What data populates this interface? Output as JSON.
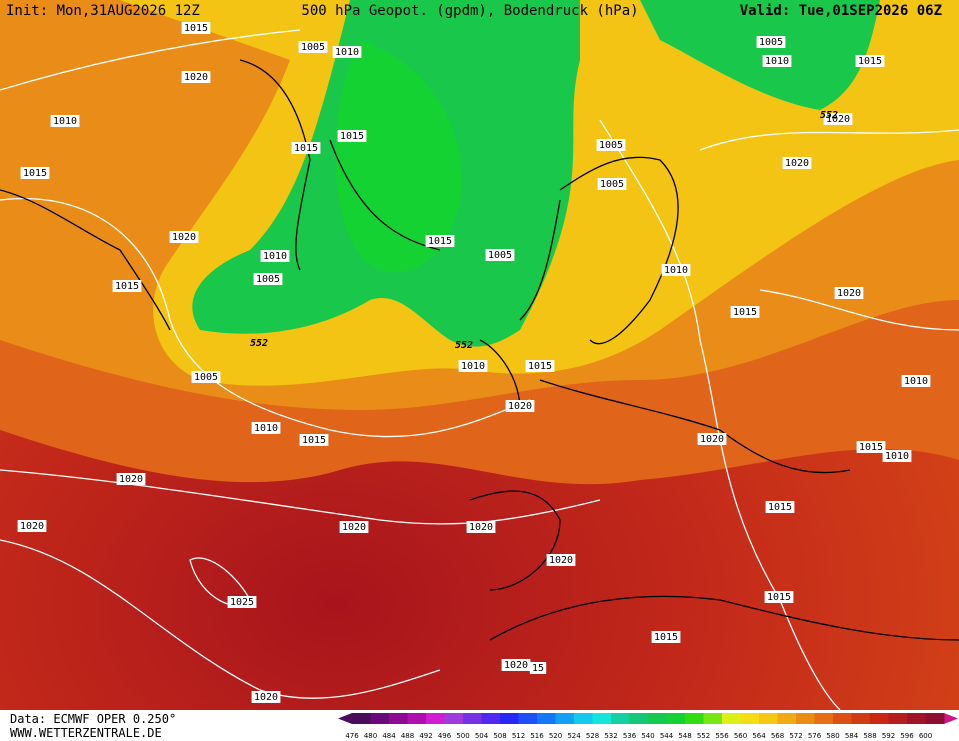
{
  "header": {
    "init": "Init: Mon,31AUG2026 12Z",
    "title": "500 hPa Geopot. (gpdm), Bodendruck (hPa)",
    "valid": "Valid: Tue,01SEP2026 06Z"
  },
  "footer": {
    "source": "Data: ECMWF OPER 0.250°",
    "site": "WWW.WETTERZENTRALE.DE"
  },
  "map": {
    "isobar_labels": [
      "1015",
      "1020",
      "1005",
      "1010",
      "1010",
      "1015",
      "1015",
      "1015",
      "1020",
      "1010",
      "1005",
      "1015",
      "1015",
      "1005",
      "1005",
      "1005",
      "1010",
      "1005",
      "1010",
      "1015",
      "1020",
      "1020",
      "1020",
      "1015",
      "1010",
      "1015",
      "1005",
      "1020",
      "1010",
      "1015",
      "1020",
      "1010",
      "1015",
      "1010",
      "1015",
      "1020",
      "1020",
      "1020",
      "1020",
      "1020",
      "1025",
      "1015",
      "1015",
      "1020",
      "15",
      "1020"
    ],
    "contour_labels": [
      "552",
      "552",
      "552"
    ]
  },
  "colorbar": {
    "values": [
      476,
      480,
      484,
      488,
      492,
      496,
      500,
      504,
      508,
      512,
      516,
      520,
      524,
      528,
      532,
      536,
      540,
      544,
      548,
      552,
      556,
      560,
      564,
      568,
      572,
      576,
      580,
      584,
      588,
      592,
      596,
      600
    ],
    "colors": [
      "#4b0c5b",
      "#6a0a7a",
      "#8c0a94",
      "#b00fb0",
      "#d21ed2",
      "#a03cdc",
      "#7832e6",
      "#5028f0",
      "#2828f5",
      "#1e50f5",
      "#1478f5",
      "#14a0f5",
      "#14c8f0",
      "#14e6dc",
      "#14d2a0",
      "#14c878",
      "#14c850",
      "#14d232",
      "#32dc14",
      "#78e614",
      "#dcf014",
      "#f5dc14",
      "#f5c814",
      "#f0aa14",
      "#eb8c14",
      "#e66e14",
      "#dc5014",
      "#d23c14",
      "#c82814",
      "#b41e1e",
      "#a01428",
      "#8c0f32"
    ]
  }
}
